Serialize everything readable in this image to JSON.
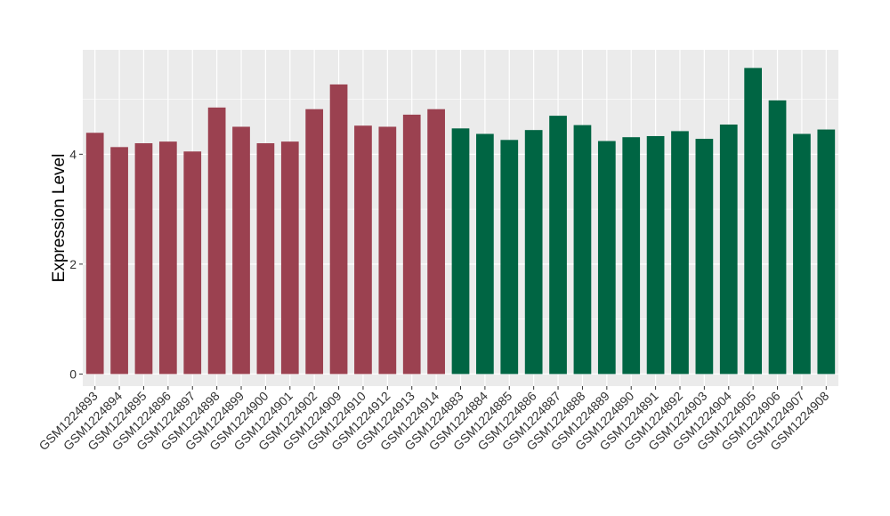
{
  "chart_data": {
    "type": "bar",
    "title": "",
    "xlabel": "",
    "ylabel": "Expression Level",
    "ylim": [
      -0.22,
      5.9
    ],
    "yticks": [
      0,
      2,
      4
    ],
    "grid": true,
    "legend": "none",
    "categories": [
      "GSM1224893",
      "GSM1224894",
      "GSM1224895",
      "GSM1224896",
      "GSM1224897",
      "GSM1224898",
      "GSM1224899",
      "GSM1224900",
      "GSM1224901",
      "GSM1224902",
      "GSM1224909",
      "GSM1224910",
      "GSM1224912",
      "GSM1224913",
      "GSM1224914",
      "GSM1224883",
      "GSM1224884",
      "GSM1224885",
      "GSM1224886",
      "GSM1224887",
      "GSM1224888",
      "GSM1224889",
      "GSM1224890",
      "GSM1224891",
      "GSM1224892",
      "GSM1224903",
      "GSM1224904",
      "GSM1224905",
      "GSM1224906",
      "GSM1224907",
      "GSM1224908"
    ],
    "values": [
      4.39,
      4.13,
      4.2,
      4.23,
      4.05,
      4.85,
      4.5,
      4.2,
      4.23,
      4.82,
      5.27,
      4.52,
      4.5,
      4.72,
      4.82,
      4.47,
      4.37,
      4.26,
      4.44,
      4.7,
      4.53,
      4.24,
      4.31,
      4.33,
      4.42,
      4.28,
      4.54,
      5.57,
      4.98,
      4.37,
      4.45
    ],
    "groups": [
      1,
      1,
      1,
      1,
      1,
      1,
      1,
      1,
      1,
      1,
      1,
      1,
      1,
      1,
      1,
      2,
      2,
      2,
      2,
      2,
      2,
      2,
      2,
      2,
      2,
      2,
      2,
      2,
      2,
      2,
      2
    ],
    "colors": {
      "group1": "#9b4150",
      "group2": "#006543",
      "panel": "#ebebeb",
      "grid": "#ffffff"
    }
  }
}
